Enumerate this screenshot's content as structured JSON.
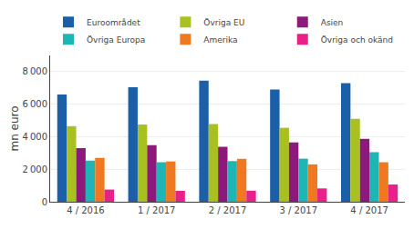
{
  "chart_data": {
    "type": "bar",
    "ylabel": "mn euro",
    "categories": [
      "4 / 2016",
      "1 / 2017",
      "2 / 2017",
      "3 / 2017",
      "4 / 2017"
    ],
    "series": [
      {
        "name": "Euroområdet",
        "color": "#1a5fa8",
        "values": [
          6600,
          7050,
          7450,
          6900,
          7300
        ]
      },
      {
        "name": "Övriga EU",
        "color": "#a8c020",
        "values": [
          4650,
          4750,
          4780,
          4550,
          5100
        ]
      },
      {
        "name": "Asien",
        "color": "#8b1a7a",
        "values": [
          3300,
          3480,
          3380,
          3650,
          3870
        ]
      },
      {
        "name": "Övriga Europa",
        "color": "#20b5b5",
        "values": [
          2530,
          2430,
          2500,
          2650,
          3050
        ]
      },
      {
        "name": "Amerika",
        "color": "#f07820",
        "values": [
          2700,
          2480,
          2640,
          2300,
          2430
        ]
      },
      {
        "name": "Övriga och okänd",
        "color": "#e8208a",
        "values": [
          750,
          670,
          680,
          820,
          1060
        ]
      }
    ],
    "ylim": [
      0,
      9000
    ],
    "yticks": [
      0,
      {
        "value": 2000,
        "label": "2 000"
      },
      {
        "value": 4000,
        "label": "4 000"
      },
      {
        "value": 6000,
        "label": "6 000"
      },
      {
        "value": 8000,
        "label": "8 000"
      }
    ],
    "grid": true,
    "legend": "upper left"
  }
}
